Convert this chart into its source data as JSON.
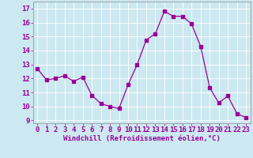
{
  "x": [
    0,
    1,
    2,
    3,
    4,
    5,
    6,
    7,
    8,
    9,
    10,
    11,
    12,
    13,
    14,
    15,
    16,
    17,
    18,
    19,
    20,
    21,
    22,
    23
  ],
  "y": [
    12.7,
    11.9,
    12.0,
    12.2,
    11.8,
    12.1,
    10.8,
    10.2,
    10.0,
    9.85,
    11.55,
    13.0,
    14.75,
    15.2,
    16.8,
    16.45,
    16.45,
    15.9,
    14.3,
    11.35,
    10.25,
    10.75,
    9.5,
    9.2
  ],
  "line_color": "#990099",
  "marker": "s",
  "markersize": 2.2,
  "linewidth": 0.9,
  "bg_color": "#cce8f0",
  "grid_color": "#ffffff",
  "xlabel": "Windchill (Refroidissement éolien,°C)",
  "xlabel_fontsize": 6.5,
  "tick_fontsize": 6.5,
  "ylim": [
    8.8,
    17.5
  ],
  "xlim": [
    -0.5,
    23.5
  ],
  "yticks": [
    9,
    10,
    11,
    12,
    13,
    14,
    15,
    16,
    17
  ],
  "xticks": [
    0,
    1,
    2,
    3,
    4,
    5,
    6,
    7,
    8,
    9,
    10,
    11,
    12,
    13,
    14,
    15,
    16,
    17,
    18,
    19,
    20,
    21,
    22,
    23
  ]
}
